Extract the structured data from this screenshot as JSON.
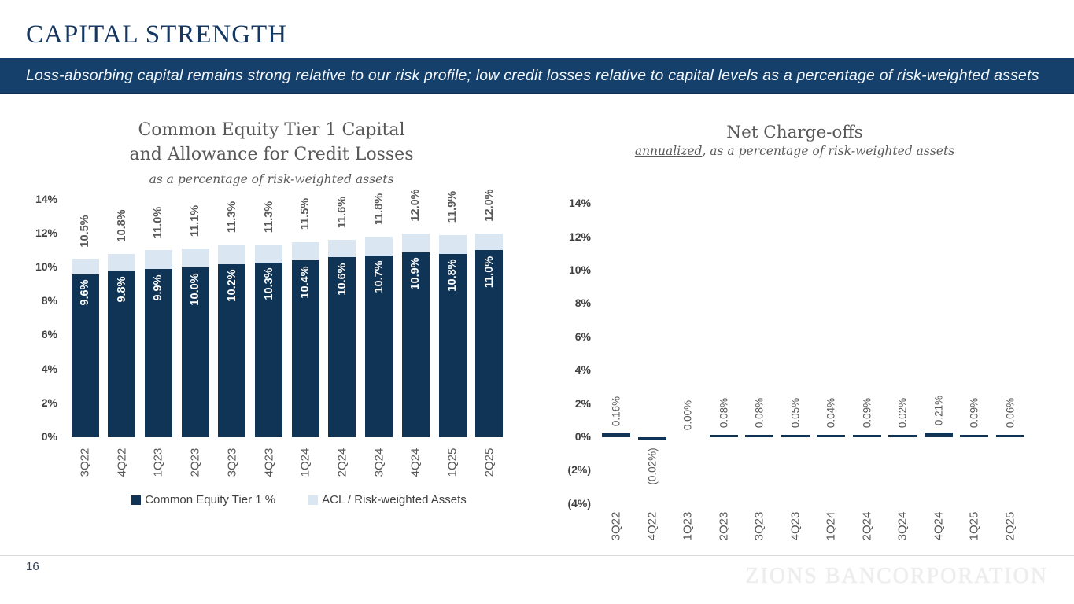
{
  "header": {
    "title": "CAPITAL STRENGTH",
    "banner_text": "Loss-absorbing capital remains strong relative to our risk profile; low credit losses relative to capital levels as a percentage of risk-weighted assets"
  },
  "footer": {
    "page_number": "16",
    "watermark": "ZIONS BANCORPORATION"
  },
  "colors": {
    "navy_bar": "#0f3456",
    "light_blue_bar": "#dae6f2",
    "banner_bg": "#15406b",
    "title_navy": "#16375f",
    "label_gray": "#595959"
  },
  "chart_data": [
    {
      "type": "bar",
      "stacked": true,
      "title": "Common Equity Tier 1 Capital and Allowance for Credit Losses",
      "title_lines": [
        "Common Equity Tier 1 Capital",
        "and Allowance for Credit Losses"
      ],
      "subtitle": "as a percentage of risk-weighted assets",
      "categories": [
        "3Q22",
        "4Q22",
        "1Q23",
        "2Q23",
        "3Q23",
        "4Q23",
        "1Q24",
        "2Q24",
        "3Q24",
        "4Q24",
        "1Q25",
        "2Q25"
      ],
      "series": [
        {
          "name": "Common Equity Tier 1 %",
          "color": "#0f3456",
          "values": [
            9.6,
            9.8,
            9.9,
            10.0,
            10.2,
            10.3,
            10.4,
            10.6,
            10.7,
            10.9,
            10.8,
            11.0
          ],
          "labels": [
            "9.6%",
            "9.8%",
            "9.9%",
            "10.0%",
            "10.2%",
            "10.3%",
            "10.4%",
            "10.6%",
            "10.7%",
            "10.9%",
            "10.8%",
            "11.0%"
          ]
        },
        {
          "name": "ACL / Risk-weighted Assets",
          "color": "#dae6f2",
          "values": [
            0.9,
            1.0,
            1.1,
            1.1,
            1.1,
            1.0,
            1.1,
            1.0,
            1.1,
            1.1,
            1.1,
            1.0
          ]
        }
      ],
      "totals": [
        10.5,
        10.8,
        11.0,
        11.1,
        11.3,
        11.3,
        11.5,
        11.6,
        11.8,
        12.0,
        11.9,
        12.0
      ],
      "total_labels": [
        "10.5%",
        "10.8%",
        "11.0%",
        "11.1%",
        "11.3%",
        "11.3%",
        "11.5%",
        "11.6%",
        "11.8%",
        "12.0%",
        "11.9%",
        "12.0%"
      ],
      "ylim": [
        0,
        14
      ],
      "y_ticks": [
        {
          "label": "14%",
          "value": 14
        },
        {
          "label": "12%",
          "value": 12
        },
        {
          "label": "10%",
          "value": 10
        },
        {
          "label": "8%",
          "value": 8
        },
        {
          "label": "6%",
          "value": 6
        },
        {
          "label": "4%",
          "value": 4
        },
        {
          "label": "2%",
          "value": 2
        },
        {
          "label": "0%",
          "value": 0
        }
      ],
      "grid": false,
      "legend_position": "bottom"
    },
    {
      "type": "bar",
      "stacked": false,
      "title": "Net Charge-offs",
      "subtitle_parts": {
        "underlined": "annualized",
        "rest": ", as a percentage of risk-weighted assets"
      },
      "categories": [
        "3Q22",
        "4Q22",
        "1Q23",
        "2Q23",
        "3Q23",
        "4Q23",
        "1Q24",
        "2Q24",
        "3Q24",
        "4Q24",
        "1Q25",
        "2Q25"
      ],
      "values": [
        0.16,
        -0.02,
        0.0,
        0.08,
        0.08,
        0.05,
        0.04,
        0.09,
        0.02,
        0.21,
        0.09,
        0.06
      ],
      "labels": [
        "0.16%",
        "(0.02%)",
        "0.00%",
        "0.08%",
        "0.08%",
        "0.05%",
        "0.04%",
        "0.09%",
        "0.02%",
        "0.21%",
        "0.09%",
        "0.06%"
      ],
      "bar_color": "#0f3456",
      "ylim": [
        -4,
        14
      ],
      "y_ticks": [
        {
          "label": "14%",
          "value": 14
        },
        {
          "label": "12%",
          "value": 12
        },
        {
          "label": "10%",
          "value": 10
        },
        {
          "label": "8%",
          "value": 8
        },
        {
          "label": "6%",
          "value": 6
        },
        {
          "label": "4%",
          "value": 4
        },
        {
          "label": "2%",
          "value": 2
        },
        {
          "label": "0%",
          "value": 0
        },
        {
          "label": "(2%)",
          "value": -2
        },
        {
          "label": "(4%)",
          "value": -4
        }
      ],
      "grid": false,
      "legend_position": "none"
    }
  ]
}
